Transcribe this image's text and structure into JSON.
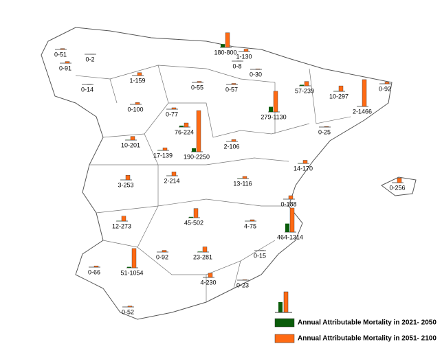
{
  "regions": [
    {
      "label": "0-51",
      "values": [
        0,
        51
      ]
    },
    {
      "label": "0-2",
      "values": [
        0,
        2
      ]
    },
    {
      "label": "0-91",
      "values": [
        0,
        91
      ]
    },
    {
      "label": "0-14",
      "values": [
        0,
        14
      ]
    },
    {
      "label": "1-159",
      "values": [
        1,
        159
      ]
    },
    {
      "label": "180-800",
      "values": [
        180,
        800
      ]
    },
    {
      "label": "1-130",
      "values": [
        1,
        130
      ]
    },
    {
      "label": "0-8",
      "values": [
        0,
        8
      ]
    },
    {
      "label": "0-30",
      "values": [
        0,
        30
      ]
    },
    {
      "label": "0-55",
      "values": [
        0,
        55
      ]
    },
    {
      "label": "0-57",
      "values": [
        0,
        57
      ]
    },
    {
      "label": "57-239",
      "values": [
        57,
        239
      ]
    },
    {
      "label": "10-297",
      "values": [
        10,
        297
      ]
    },
    {
      "label": "0-92",
      "values": [
        0,
        92
      ]
    },
    {
      "label": "2-1466",
      "values": [
        2,
        1466
      ]
    },
    {
      "label": "279-1130",
      "values": [
        279,
        1130
      ]
    },
    {
      "label": "0-100",
      "values": [
        0,
        100
      ]
    },
    {
      "label": "0-77",
      "values": [
        0,
        77
      ]
    },
    {
      "label": "76-224",
      "values": [
        76,
        224
      ]
    },
    {
      "label": "0-25",
      "values": [
        0,
        25
      ]
    },
    {
      "label": "10-201",
      "values": [
        10,
        201
      ]
    },
    {
      "label": "17-139",
      "values": [
        17,
        139
      ]
    },
    {
      "label": "190-2250",
      "values": [
        190,
        2250
      ]
    },
    {
      "label": "2-106",
      "values": [
        2,
        106
      ]
    },
    {
      "label": "14-170",
      "values": [
        14,
        170
      ]
    },
    {
      "label": "3-253",
      "values": [
        3,
        253
      ]
    },
    {
      "label": "2-214",
      "values": [
        2,
        214
      ]
    },
    {
      "label": "13-116",
      "values": [
        13,
        116
      ]
    },
    {
      "label": "0-256",
      "values": [
        0,
        256
      ]
    },
    {
      "label": "0-188",
      "values": [
        0,
        188
      ]
    },
    {
      "label": "12-273",
      "values": [
        12,
        273
      ]
    },
    {
      "label": "45-502",
      "values": [
        45,
        502
      ]
    },
    {
      "label": "4-75",
      "values": [
        4,
        75
      ]
    },
    {
      "label": "464-1314",
      "values": [
        464,
        1314
      ]
    },
    {
      "label": "0-92",
      "values": [
        0,
        92
      ]
    },
    {
      "label": "23-281",
      "values": [
        23,
        281
      ]
    },
    {
      "label": "0-15",
      "values": [
        0,
        15
      ]
    },
    {
      "label": "51-1054",
      "values": [
        51,
        1054
      ]
    },
    {
      "label": "0-66",
      "values": [
        0,
        66
      ]
    },
    {
      "label": "4-230",
      "values": [
        4,
        230
      ]
    },
    {
      "label": "0-23",
      "values": [
        0,
        23
      ]
    },
    {
      "label": "0-52",
      "values": [
        0,
        52
      ]
    }
  ],
  "legend": [
    {
      "label": "Annual Attributable Mortality in 2021- 2050",
      "color": "#0a5c0a"
    },
    {
      "label": "Annual Attributable Mortality in 2051- 2100",
      "color": "#ff6a13"
    }
  ]
}
